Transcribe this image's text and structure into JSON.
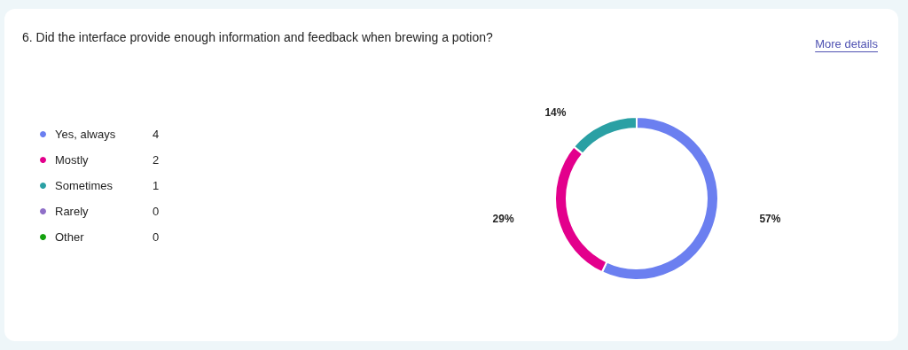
{
  "chart_data": {
    "type": "donut",
    "title": "6. Did the interface provide enough information and feedback when brewing a potion?",
    "categories": [
      "Yes, always",
      "Mostly",
      "Sometimes",
      "Rarely",
      "Other"
    ],
    "values": [
      57,
      29,
      14,
      0,
      0
    ],
    "value_labels": [
      "57%",
      "29%",
      "14%",
      null,
      null
    ],
    "colors": [
      "#6b7ff0",
      "#e3008c",
      "#2aa0a4",
      "#8f6fc8",
      "#13a10e"
    ],
    "legend": "left",
    "annotations": [
      "More details",
      "4",
      "2",
      "1",
      "0",
      "0"
    ]
  }
}
